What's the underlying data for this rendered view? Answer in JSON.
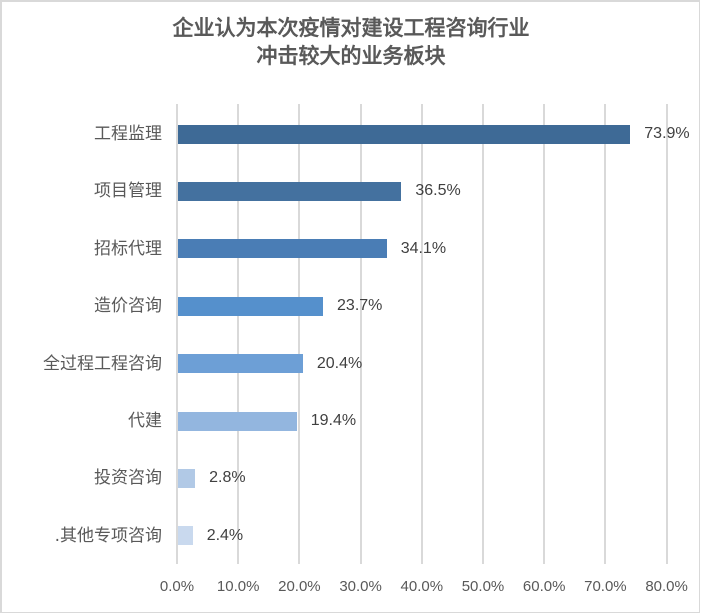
{
  "chart_data": {
    "type": "bar",
    "orientation": "horizontal",
    "title": "企业认为本次疫情对建设工程咨询行业冲击较大的业务板块",
    "title_lines": [
      "企业认为本次疫情对建设工程咨询行业",
      "冲击较大的业务板块"
    ],
    "categories": [
      "工程监理",
      "项目管理",
      "招标代理",
      "造价咨询",
      "全过程工程咨询",
      "代建",
      "投资咨询",
      ".其他专项咨询"
    ],
    "values": [
      73.9,
      36.5,
      34.1,
      23.7,
      20.4,
      19.4,
      2.8,
      2.4
    ],
    "value_labels": [
      "73.9%",
      "36.5%",
      "34.1%",
      "23.7%",
      "20.4%",
      "19.4%",
      "2.8%",
      "2.4%"
    ],
    "bar_colors": [
      "#3e6a96",
      "#44719f",
      "#4a7db5",
      "#5590cc",
      "#6d9fd6",
      "#93b6df",
      "#b1c9e6",
      "#c9d9ee"
    ],
    "xlabel": "",
    "ylabel": "",
    "xlim": [
      0,
      80
    ],
    "x_ticks": [
      "0.0%",
      "10.0%",
      "20.0%",
      "30.0%",
      "40.0%",
      "50.0%",
      "60.0%",
      "70.0%",
      "80.0%"
    ],
    "grid": true,
    "legend": "none"
  }
}
